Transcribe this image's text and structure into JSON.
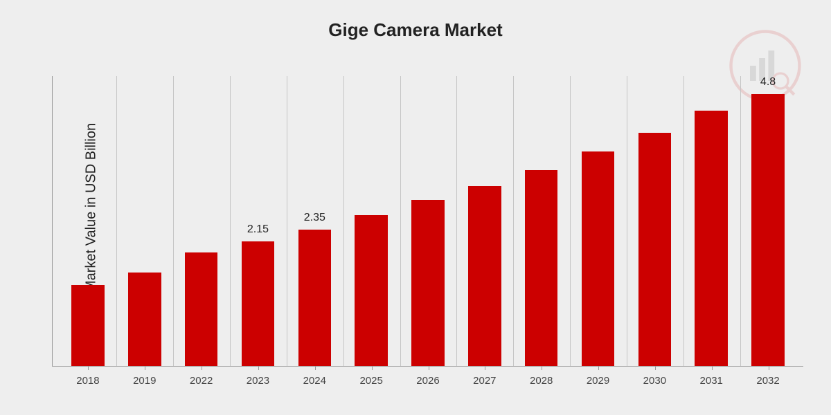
{
  "chart": {
    "type": "bar",
    "title": "Gige Camera Market",
    "title_fontsize": 26,
    "ylabel": "Market Value in USD Billion",
    "ylabel_fontsize": 20,
    "background_color": "#eeeeee",
    "bar_color": "#cc0000",
    "grid_color": "#c5c5c5",
    "axis_color": "#999999",
    "text_color": "#222222",
    "xlabel_color": "#444444",
    "ymax": 5.0,
    "bar_width_pct": 58,
    "categories": [
      "2018",
      "2019",
      "2022",
      "2023",
      "2024",
      "2025",
      "2026",
      "2027",
      "2028",
      "2029",
      "2030",
      "2031",
      "2032"
    ],
    "values": [
      1.4,
      1.61,
      1.96,
      2.15,
      2.35,
      2.6,
      2.86,
      3.1,
      3.38,
      3.7,
      4.02,
      4.4,
      4.8
    ],
    "value_labels": [
      "",
      "",
      "",
      "2.15",
      "2.35",
      "",
      "",
      "",
      "",
      "",
      "",
      "",
      "4.8"
    ],
    "xlabel_fontsize": 15,
    "value_label_fontsize": 16
  }
}
